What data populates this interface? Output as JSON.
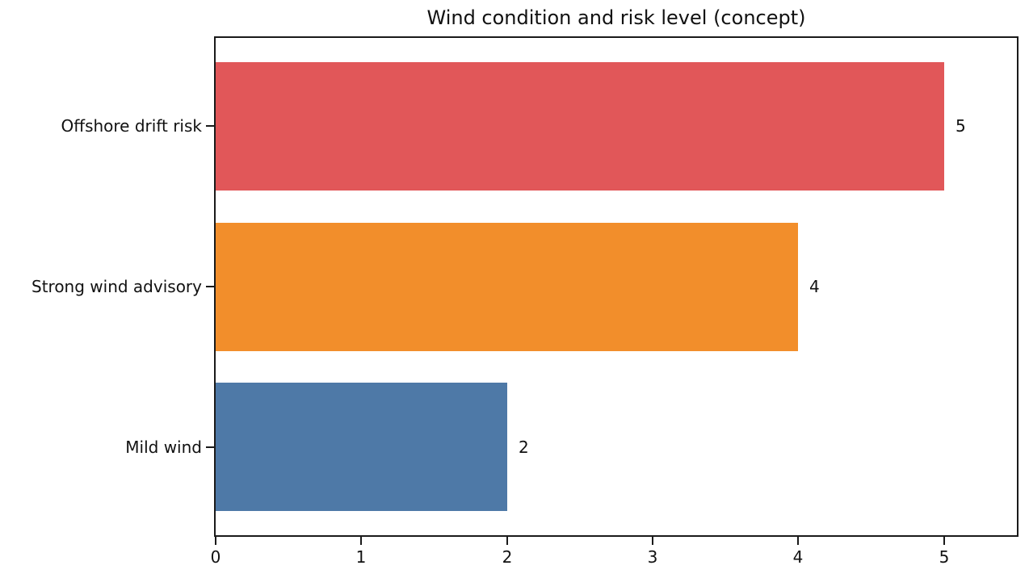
{
  "chart_data": {
    "type": "bar",
    "orientation": "horizontal",
    "title": "Wind condition and risk level (concept)",
    "categories": [
      "Offshore drift risk",
      "Strong wind advisory",
      "Mild wind"
    ],
    "values": [
      5,
      4,
      2
    ],
    "value_labels": [
      "5",
      "4",
      "2"
    ],
    "bar_colors": [
      "#e15759",
      "#f28e2b",
      "#4e79a7"
    ],
    "xlabel": "",
    "ylabel": "",
    "xlim": [
      0,
      5.5
    ],
    "x_ticks": [
      "0",
      "1",
      "2",
      "3",
      "4",
      "5"
    ],
    "x_tick_values": [
      0,
      1,
      2,
      3,
      4,
      5
    ],
    "grid": false,
    "legend": null,
    "background_color": "#ffffff",
    "frame_color": "#1a1a1a",
    "text_color": "#111111"
  }
}
